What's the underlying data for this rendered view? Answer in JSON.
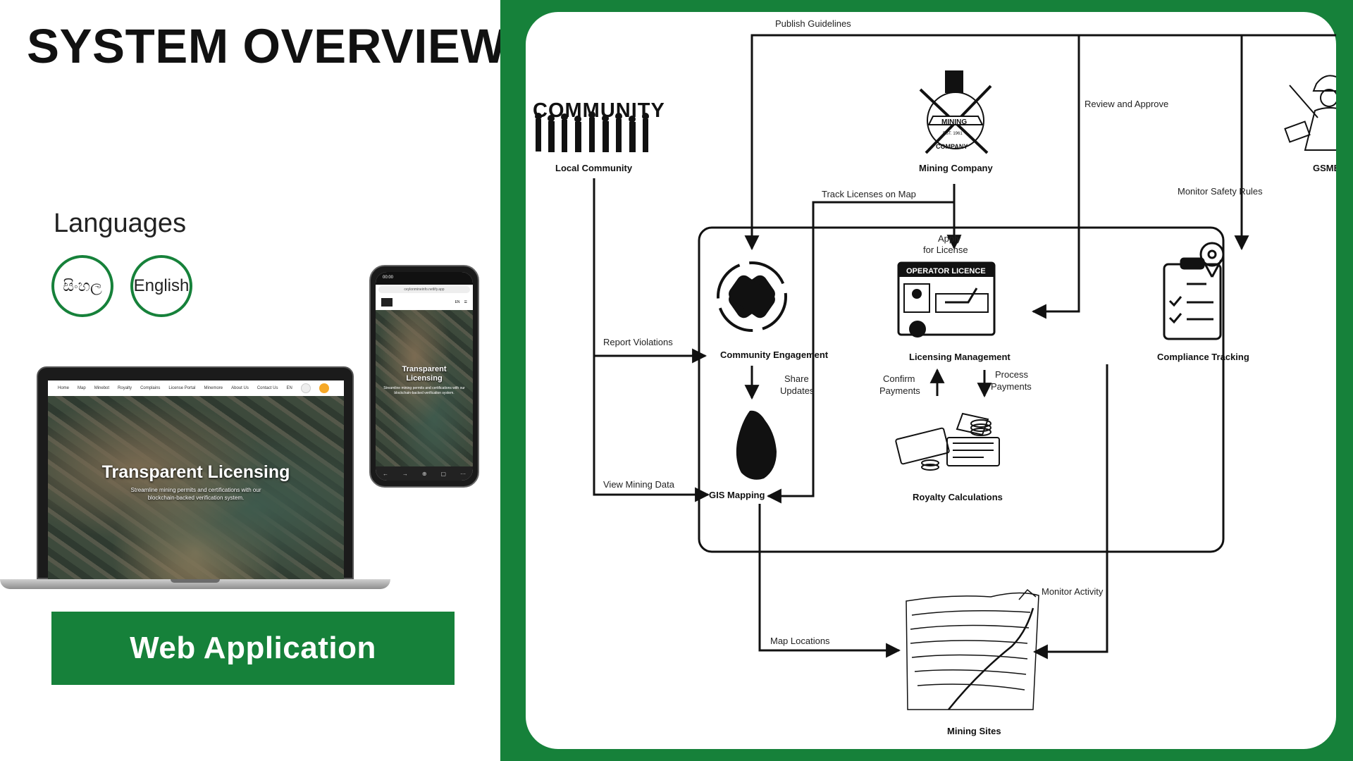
{
  "left": {
    "title": "SYSTEM OVERVIEW",
    "languages_heading": "Languages",
    "languages": [
      "සිංහල",
      "English"
    ],
    "laptop": {
      "nav_items": [
        "Home",
        "Map",
        "Minebot",
        "Royalty",
        "Complains",
        "License Portal",
        "Minemore",
        "About Us",
        "Contact Us"
      ],
      "lang_badge": "EN",
      "hero_title": "Transparent Licensing",
      "hero_subtitle_1": "Streamline mining permits and certifications with our",
      "hero_subtitle_2": "blockchain-backed verification system."
    },
    "phone": {
      "time": "00:00",
      "url": "ceylonmineinfo.netlify.app",
      "lang_badge": "EN",
      "hero_title_1": "Transparent",
      "hero_title_2": "Licensing",
      "hero_subtitle": "Streamline mining permits and certifications with our blockchain-backed verification system."
    },
    "web_button": "Web Application"
  },
  "diagram": {
    "nodes": {
      "local_community": "Local Community",
      "community_logo": "COMMUNITY",
      "mining_company": "Mining Company",
      "mining_logo_top": "MINING",
      "mining_logo_bottom": "COMPANY",
      "mining_logo_est": "EST. 1961",
      "gsmb_officer": "GSMB Officer",
      "community_engagement": "Community Engagement",
      "licensing_management": "Licensing Management",
      "operator_licence": "OPERATOR LICENCE",
      "compliance_tracking": "Compliance Tracking",
      "gis_mapping": "GIS Mapping",
      "royalty_calculations": "Royalty Calculations",
      "mining_sites": "Mining Sites"
    },
    "edges": {
      "publish_guidelines": "Publish Guidelines",
      "review_and_approve": "Review and Approve",
      "monitor_safety_rules": "Monitor Safety Rules",
      "track_licenses_on_map": "Track Licenses on Map",
      "apply_for_license_1": "Apply",
      "apply_for_license_2": "for License",
      "report_violations": "Report Violations",
      "share_updates_1": "Share",
      "share_updates_2": "Updates",
      "confirm_payments_1": "Confirm",
      "confirm_payments_2": "Payments",
      "process_payments_1": "Process",
      "process_payments_2": "Payments",
      "view_mining_data": "View Mining Data",
      "map_locations": "Map Locations",
      "monitor_activity": "Monitor Activity"
    }
  },
  "colors": {
    "brand_green": "#16813a",
    "line": "#111111"
  }
}
